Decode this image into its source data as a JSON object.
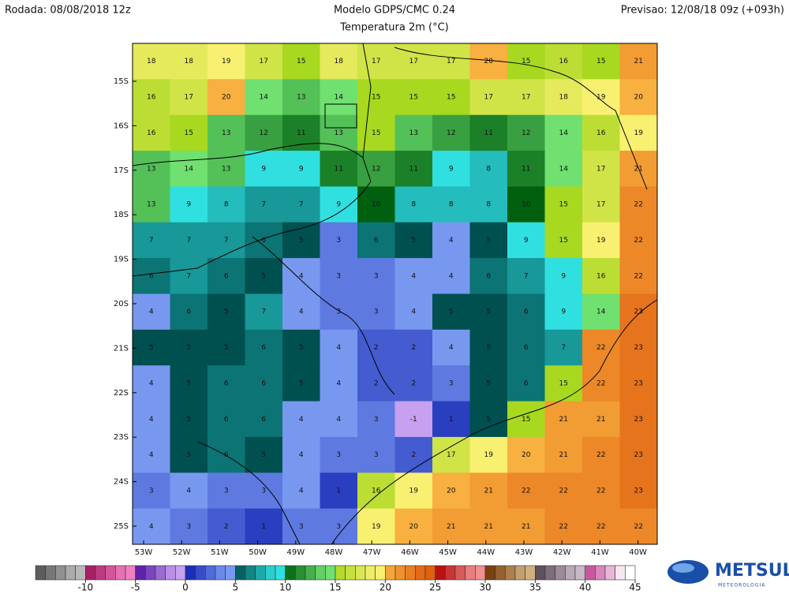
{
  "header": {
    "run": "Rodada: 08/08/2018 12z",
    "model": "Modelo GDPS/CMC 0.24",
    "field": "Temperatura 2m (°C)",
    "forecast": "Previsao: 12/08/18 09z (+093h)"
  },
  "map": {
    "lat_labels": [
      "15S",
      "16S",
      "17S",
      "18S",
      "19S",
      "20S",
      "21S",
      "22S",
      "23S",
      "24S",
      "25S"
    ],
    "lon_labels": [
      "53W",
      "52W",
      "51W",
      "50W",
      "49W",
      "48W",
      "47W",
      "46W",
      "45W",
      "44W",
      "43W",
      "42W",
      "41W",
      "40W"
    ],
    "grid": [
      [
        18,
        18,
        19,
        17,
        15,
        18,
        17,
        17,
        17,
        20,
        15,
        16,
        15,
        21
      ],
      [
        16,
        17,
        20,
        14,
        13,
        14,
        15,
        15,
        15,
        17,
        17,
        18,
        19,
        20
      ],
      [
        16,
        15,
        13,
        12,
        11,
        13,
        15,
        13,
        12,
        11,
        12,
        14,
        16,
        19
      ],
      [
        13,
        14,
        13,
        9,
        9,
        11,
        12,
        11,
        9,
        8,
        11,
        14,
        17,
        21
      ],
      [
        13,
        9,
        8,
        7,
        7,
        9,
        10,
        8,
        8,
        8,
        10,
        15,
        17,
        22
      ],
      [
        7,
        7,
        7,
        6,
        5,
        3,
        6,
        5,
        4,
        5,
        9,
        15,
        19,
        22
      ],
      [
        6,
        7,
        6,
        5,
        4,
        3,
        3,
        4,
        4,
        6,
        7,
        9,
        16,
        22
      ],
      [
        4,
        6,
        5,
        7,
        4,
        3,
        3,
        4,
        5,
        5,
        6,
        9,
        14,
        23
      ],
      [
        5,
        5,
        5,
        6,
        5,
        4,
        2,
        2,
        4,
        5,
        6,
        7,
        22,
        23
      ],
      [
        4,
        5,
        6,
        6,
        5,
        4,
        2,
        2,
        3,
        5,
        6,
        15,
        22,
        23
      ],
      [
        4,
        5,
        6,
        6,
        4,
        4,
        3,
        -1,
        1,
        5,
        15,
        21,
        21,
        23
      ],
      [
        4,
        5,
        6,
        5,
        4,
        3,
        3,
        2,
        17,
        19,
        20,
        21,
        22,
        23
      ],
      [
        3,
        4,
        3,
        3,
        4,
        1,
        16,
        19,
        20,
        21,
        22,
        22,
        22,
        23
      ],
      [
        4,
        3,
        2,
        1,
        3,
        3,
        19,
        20,
        21,
        21,
        21,
        22,
        22,
        22
      ]
    ]
  },
  "colorbar": {
    "lim": [
      -15,
      45
    ],
    "ticks": [
      -10,
      -5,
      0,
      5,
      10,
      15,
      20,
      25,
      30,
      35,
      40,
      45
    ],
    "bands": [
      [
        "#505050",
        "#b8b8b8"
      ],
      [
        "#a0105a",
        "#f080c0"
      ],
      [
        "#5010a0",
        "#c8a0f0"
      ],
      [
        "#1020b0",
        "#7898f0"
      ],
      [
        "#005050",
        "#30e0e0"
      ],
      [
        "#006010",
        "#70e070"
      ],
      [
        "#a8d820",
        "#f8f070"
      ],
      [
        "#f8b040",
        "#e06010"
      ],
      [
        "#b00000",
        "#f09090"
      ],
      [
        "#703000",
        "#d0b080"
      ],
      [
        "#504050",
        "#c8b8c8"
      ],
      [
        "#c04090",
        "#ffffff"
      ]
    ]
  },
  "logo": {
    "name": "METSUL",
    "subtitle": "METEOROLOGIA"
  }
}
